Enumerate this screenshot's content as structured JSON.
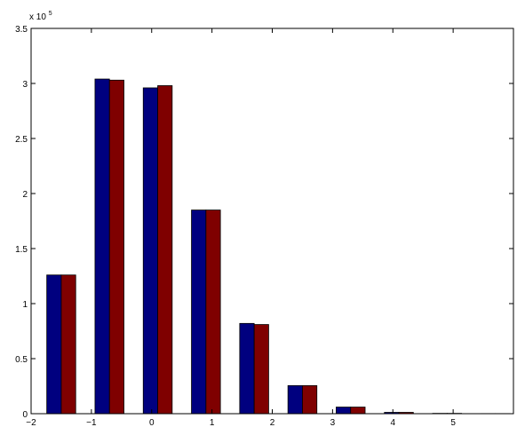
{
  "chart_data": {
    "type": "bar",
    "title": "",
    "xlabel": "",
    "ylabel": "",
    "exponent_label": {
      "base": "x 10",
      "power": "5"
    },
    "xlim": [
      -2,
      6
    ],
    "ylim": [
      0,
      350000
    ],
    "x_ticks": [
      -2,
      -1,
      0,
      1,
      2,
      3,
      4,
      5
    ],
    "x_tick_labels": [
      "−2",
      "−1",
      "0",
      "1",
      "2",
      "3",
      "4",
      "5"
    ],
    "y_ticks": [
      0,
      50000,
      100000,
      150000,
      200000,
      250000,
      300000,
      350000
    ],
    "y_tick_labels": [
      "0",
      "0.5",
      "1",
      "1.5",
      "2",
      "2.5",
      "3",
      "3.5"
    ],
    "x": [
      -1.5,
      -0.7,
      0.1,
      0.9,
      1.7,
      2.5,
      3.3,
      4.1,
      4.9,
      5.7
    ],
    "bar_group_width": 0.48,
    "grid": false,
    "series": [
      {
        "color": "#00007f",
        "values": [
          126000,
          304000,
          296000,
          185000,
          82000,
          25500,
          6000,
          1200,
          300,
          100
        ]
      },
      {
        "color": "#7f0000",
        "values": [
          126000,
          303000,
          298000,
          185000,
          81000,
          25500,
          6000,
          1200,
          300,
          100
        ]
      }
    ]
  }
}
